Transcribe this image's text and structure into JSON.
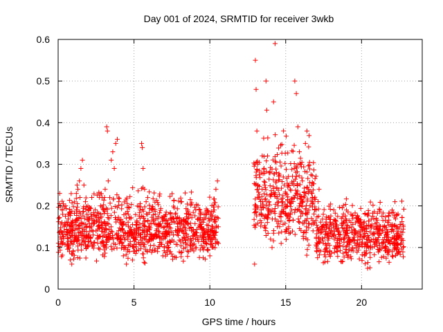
{
  "chart_data": {
    "type": "scatter",
    "title": "Day 001 of 2024, SRMTID for receiver 3wkb",
    "xlabel": "GPS time / hours",
    "ylabel": "SRMTID / TECUs",
    "xlim": [
      0,
      24
    ],
    "ylim": [
      0,
      0.6
    ],
    "xticks": [
      0,
      5,
      10,
      15,
      20
    ],
    "xtick_labels": [
      "0",
      "5",
      "10",
      "15",
      "20"
    ],
    "yticks": [
      0,
      0.1,
      0.2,
      0.3,
      0.4,
      0.5,
      0.6
    ],
    "ytick_labels": [
      "0",
      "0.1",
      "0.2",
      "0.3",
      "0.4",
      "0.5",
      "0.6"
    ],
    "grid": true,
    "marker": "+",
    "color": "#ff0000",
    "series": [
      {
        "name": "SRMTID",
        "envelope_segments": [
          {
            "x_start": 0.0,
            "x_end": 10.6,
            "y_low": 0.05,
            "y_typical": 0.14,
            "y_high": 0.26
          },
          {
            "x_start": 12.9,
            "x_end": 17.0,
            "y_low": 0.06,
            "y_typical": 0.22,
            "y_high": 0.42
          },
          {
            "x_start": 17.0,
            "x_end": 22.8,
            "y_low": 0.04,
            "y_typical": 0.13,
            "y_high": 0.23
          }
        ],
        "points": [
          [
            0.05,
            0.17
          ],
          [
            0.1,
            0.23
          ],
          [
            0.15,
            0.2
          ],
          [
            0.2,
            0.12
          ],
          [
            0.25,
            0.16
          ],
          [
            0.3,
            0.18
          ],
          [
            0.4,
            0.15
          ],
          [
            0.5,
            0.2
          ],
          [
            0.6,
            0.13
          ],
          [
            0.7,
            0.1
          ],
          [
            0.75,
            0.09
          ],
          [
            0.8,
            0.07
          ],
          [
            0.85,
            0.11
          ],
          [
            0.9,
            0.06
          ],
          [
            1.0,
            0.09
          ],
          [
            1.05,
            0.12
          ],
          [
            1.1,
            0.16
          ],
          [
            1.2,
            0.23
          ],
          [
            1.25,
            0.25
          ],
          [
            1.3,
            0.24
          ],
          [
            1.4,
            0.26
          ],
          [
            1.5,
            0.29
          ],
          [
            1.6,
            0.31
          ],
          [
            1.7,
            0.25
          ],
          [
            1.8,
            0.21
          ],
          [
            1.9,
            0.18
          ],
          [
            2.0,
            0.19
          ],
          [
            2.1,
            0.15
          ],
          [
            2.2,
            0.17
          ],
          [
            2.3,
            0.13
          ],
          [
            2.4,
            0.16
          ],
          [
            2.5,
            0.14
          ],
          [
            2.6,
            0.12
          ],
          [
            2.7,
            0.16
          ],
          [
            2.8,
            0.2
          ],
          [
            2.9,
            0.22
          ],
          [
            3.0,
            0.19
          ],
          [
            3.1,
            0.24
          ],
          [
            3.2,
            0.39
          ],
          [
            3.25,
            0.38
          ],
          [
            3.3,
            0.26
          ],
          [
            3.4,
            0.22
          ],
          [
            3.5,
            0.31
          ],
          [
            3.6,
            0.33
          ],
          [
            3.7,
            0.29
          ],
          [
            3.8,
            0.35
          ],
          [
            3.9,
            0.36
          ],
          [
            4.0,
            0.21
          ],
          [
            4.1,
            0.16
          ],
          [
            4.2,
            0.11
          ],
          [
            4.3,
            0.08
          ],
          [
            4.4,
            0.1
          ],
          [
            4.5,
            0.06
          ],
          [
            4.6,
            0.12
          ],
          [
            4.7,
            0.09
          ],
          [
            4.8,
            0.13
          ],
          [
            4.9,
            0.07
          ],
          [
            5.0,
            0.1
          ],
          [
            5.1,
            0.12
          ],
          [
            5.2,
            0.16
          ],
          [
            5.3,
            0.14
          ],
          [
            5.4,
            0.19
          ],
          [
            5.5,
            0.35
          ],
          [
            5.55,
            0.34
          ],
          [
            5.6,
            0.29
          ],
          [
            5.7,
            0.24
          ],
          [
            5.8,
            0.21
          ],
          [
            5.9,
            0.18
          ],
          [
            6.0,
            0.15
          ],
          [
            6.2,
            0.19
          ],
          [
            6.4,
            0.18
          ],
          [
            6.6,
            0.15
          ],
          [
            6.8,
            0.12
          ],
          [
            7.0,
            0.1
          ],
          [
            7.2,
            0.11
          ],
          [
            7.4,
            0.09
          ],
          [
            7.6,
            0.13
          ],
          [
            7.8,
            0.14
          ],
          [
            8.0,
            0.16
          ],
          [
            8.2,
            0.12
          ],
          [
            8.4,
            0.1
          ],
          [
            8.6,
            0.09
          ],
          [
            8.8,
            0.14
          ],
          [
            9.0,
            0.13
          ],
          [
            9.2,
            0.12
          ],
          [
            9.4,
            0.15
          ],
          [
            9.6,
            0.14
          ],
          [
            9.8,
            0.11
          ],
          [
            10.0,
            0.08
          ],
          [
            10.2,
            0.13
          ],
          [
            10.4,
            0.24
          ],
          [
            10.5,
            0.26
          ],
          [
            10.55,
            0.17
          ],
          [
            12.95,
            0.06
          ],
          [
            13.0,
            0.55
          ],
          [
            13.05,
            0.48
          ],
          [
            13.1,
            0.38
          ],
          [
            13.15,
            0.3
          ],
          [
            13.2,
            0.22
          ],
          [
            13.3,
            0.18
          ],
          [
            13.4,
            0.16
          ],
          [
            13.5,
            0.2
          ],
          [
            13.6,
            0.25
          ],
          [
            13.7,
            0.5
          ],
          [
            13.75,
            0.43
          ],
          [
            13.8,
            0.32
          ],
          [
            13.9,
            0.21
          ],
          [
            14.0,
            0.12
          ],
          [
            14.1,
            0.1
          ],
          [
            14.2,
            0.45
          ],
          [
            14.3,
            0.59
          ],
          [
            14.4,
            0.28
          ],
          [
            14.5,
            0.2
          ],
          [
            14.6,
            0.15
          ],
          [
            14.7,
            0.11
          ],
          [
            14.8,
            0.21
          ],
          [
            14.9,
            0.25
          ],
          [
            15.0,
            0.23
          ],
          [
            15.1,
            0.2
          ],
          [
            15.2,
            0.18
          ],
          [
            15.3,
            0.24
          ],
          [
            15.4,
            0.19
          ],
          [
            15.5,
            0.22
          ],
          [
            15.6,
            0.5
          ],
          [
            15.7,
            0.47
          ],
          [
            15.8,
            0.39
          ],
          [
            15.9,
            0.33
          ],
          [
            16.0,
            0.3
          ],
          [
            16.1,
            0.26
          ],
          [
            16.2,
            0.22
          ],
          [
            16.3,
            0.35
          ],
          [
            16.4,
            0.38
          ],
          [
            16.5,
            0.24
          ],
          [
            16.6,
            0.2
          ],
          [
            16.7,
            0.17
          ],
          [
            16.8,
            0.14
          ],
          [
            16.9,
            0.16
          ],
          [
            17.0,
            0.19
          ],
          [
            17.2,
            0.24
          ],
          [
            17.4,
            0.15
          ],
          [
            17.6,
            0.09
          ],
          [
            17.8,
            0.11
          ],
          [
            18.0,
            0.14
          ],
          [
            18.2,
            0.12
          ],
          [
            18.4,
            0.09
          ],
          [
            18.6,
            0.13
          ],
          [
            18.8,
            0.16
          ],
          [
            19.0,
            0.19
          ],
          [
            19.2,
            0.12
          ],
          [
            19.4,
            0.1
          ],
          [
            19.6,
            0.14
          ],
          [
            19.8,
            0.17
          ],
          [
            20.0,
            0.11
          ],
          [
            20.2,
            0.08
          ],
          [
            20.4,
            0.05
          ],
          [
            20.6,
            0.1
          ],
          [
            20.8,
            0.12
          ],
          [
            21.0,
            0.16
          ],
          [
            21.2,
            0.19
          ],
          [
            21.4,
            0.11
          ],
          [
            21.6,
            0.13
          ],
          [
            21.8,
            0.09
          ],
          [
            22.0,
            0.15
          ],
          [
            22.2,
            0.21
          ],
          [
            22.4,
            0.11
          ],
          [
            22.6,
            0.13
          ],
          [
            22.75,
            0.15
          ]
        ]
      }
    ]
  }
}
